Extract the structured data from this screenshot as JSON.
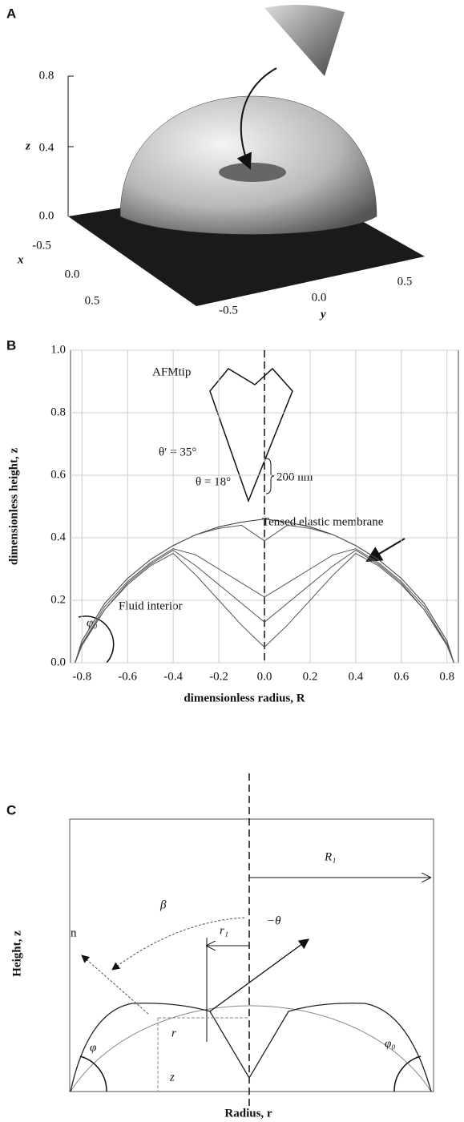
{
  "panel_a": {
    "label": "A",
    "z_ticks": [
      "0.8",
      "0.4",
      "0.0"
    ],
    "z_label": "z",
    "x_ticks": [
      "-0.5",
      "0.0",
      "0.5"
    ],
    "x_label": "x",
    "y_ticks": [
      "-0.5",
      "0.0",
      "0.5"
    ],
    "y_label": "y"
  },
  "chart_data": {
    "type": "line",
    "panel_label": "B",
    "x_label": "dimensionless radius, R",
    "y_label": "dimensionless height, z",
    "x": [
      -0.83,
      -0.8,
      -0.7,
      -0.6,
      -0.5,
      -0.4,
      -0.3,
      -0.2,
      -0.1,
      0,
      0.1,
      0.2,
      0.3,
      0.4,
      0.5,
      0.6,
      0.7,
      0.8,
      0.83
    ],
    "series": [
      {
        "color": "#333333",
        "values": [
          0,
          0.07,
          0.19,
          0.27,
          0.33,
          0.375,
          0.41,
          0.435,
          0.45,
          0.46,
          0.45,
          0.435,
          0.41,
          0.375,
          0.33,
          0.27,
          0.19,
          0.07,
          0
        ]
      },
      {
        "color": "#555555",
        "values": [
          0,
          0.07,
          0.19,
          0.27,
          0.33,
          0.375,
          0.41,
          0.43,
          0.44,
          0.39,
          0.44,
          0.43,
          0.41,
          0.375,
          0.33,
          0.27,
          0.19,
          0.07,
          0
        ]
      },
      {
        "color": "#555555",
        "values": [
          0,
          0.06,
          0.18,
          0.26,
          0.32,
          0.365,
          0.345,
          0.3,
          0.255,
          0.21,
          0.255,
          0.3,
          0.345,
          0.365,
          0.32,
          0.26,
          0.18,
          0.06,
          0
        ]
      },
      {
        "color": "#555555",
        "values": [
          0,
          0.06,
          0.17,
          0.255,
          0.315,
          0.36,
          0.31,
          0.25,
          0.19,
          0.13,
          0.19,
          0.25,
          0.31,
          0.36,
          0.315,
          0.255,
          0.17,
          0.06,
          0
        ]
      },
      {
        "color": "#555555",
        "values": [
          0,
          0.055,
          0.17,
          0.25,
          0.31,
          0.35,
          0.28,
          0.2,
          0.12,
          0.05,
          0.12,
          0.2,
          0.28,
          0.35,
          0.31,
          0.25,
          0.17,
          0.055,
          0
        ]
      }
    ],
    "xlim": [
      -0.85,
      0.85
    ],
    "xticks": [
      -0.8,
      -0.6,
      -0.4,
      -0.2,
      {
        "value": 0,
        "label": "0.0"
      },
      0.2,
      0.4,
      0.6,
      0.8
    ],
    "ylim": [
      0,
      1
    ],
    "yticks": [
      {
        "value": 0,
        "label": "0.0"
      },
      0.2,
      0.4,
      0.6,
      0.8,
      {
        "value": 1,
        "label": "1.0"
      }
    ],
    "grid": true,
    "annotations": [
      "AFMtip",
      "θ′ = 35°",
      "θ = 18°",
      "200 nm",
      "Tensed elastic membrane",
      "Fluid interior",
      "φ₀"
    ]
  },
  "panel_c": {
    "label": "C",
    "R1": "R₁",
    "n": "n",
    "beta": "β",
    "r1": "r₁",
    "minus_theta": "−θ",
    "r": "r",
    "z": "z",
    "phi": "φ",
    "phi0": "φ₀",
    "y_label": "Height, z",
    "x_label": "Radius, r"
  }
}
